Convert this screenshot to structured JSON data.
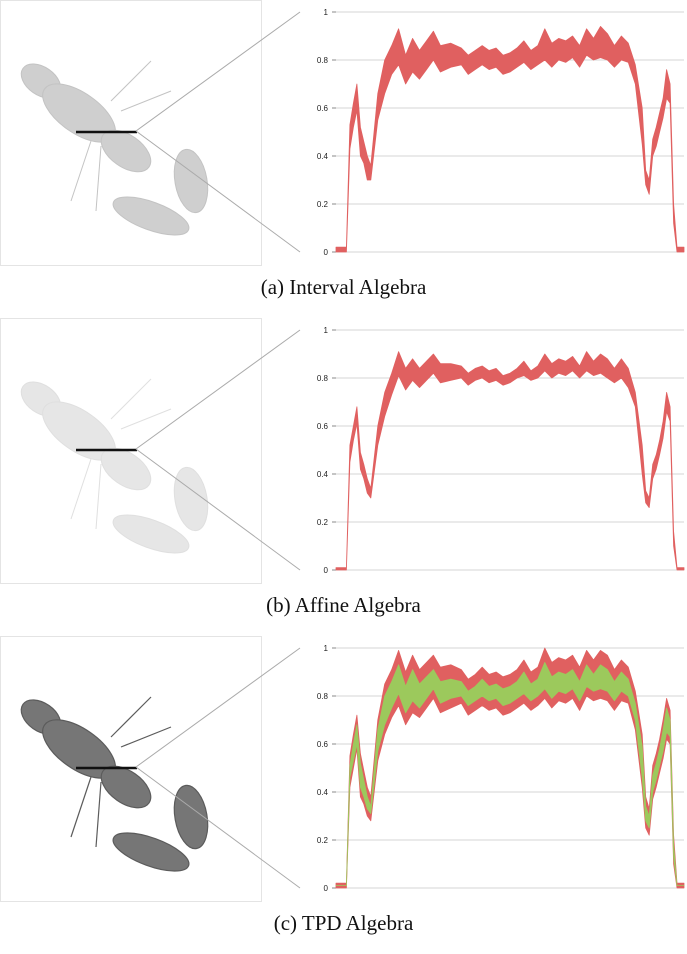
{
  "captions": [
    "(a) Interval Algebra",
    "(b) Affine Algebra",
    "(c) TPD Algebra"
  ],
  "colors": {
    "outer_band": "#e06060",
    "inner_band": "#9cc95c",
    "grid": "#d6d6d6",
    "leader": "#aaaaaa"
  },
  "chart_data": [
    {
      "type": "area",
      "ylim": [
        0,
        1
      ],
      "y_ticks": [
        "0",
        "0.2",
        "0.4",
        "0.6",
        "0.8",
        "1"
      ],
      "x": [
        0,
        1,
        2,
        3,
        4,
        5,
        6,
        7,
        8,
        9,
        10,
        12,
        14,
        16,
        18,
        20,
        22,
        24,
        26,
        28,
        30,
        33,
        36,
        38,
        40,
        42,
        44,
        46,
        48,
        50,
        52,
        54,
        56,
        58,
        60,
        62,
        64,
        66,
        68,
        70,
        72,
        74,
        76,
        78,
        80,
        82,
        84,
        86,
        88,
        89,
        90,
        91,
        92,
        93,
        94,
        95,
        96,
        97,
        98,
        99,
        100
      ],
      "series": [
        {
          "lower": [
            0.0,
            0.0,
            0.0,
            0.0,
            0.43,
            0.52,
            0.59,
            0.4,
            0.37,
            0.3,
            0.3,
            0.55,
            0.66,
            0.74,
            0.78,
            0.7,
            0.75,
            0.72,
            0.76,
            0.8,
            0.75,
            0.77,
            0.78,
            0.74,
            0.76,
            0.78,
            0.76,
            0.77,
            0.74,
            0.75,
            0.77,
            0.79,
            0.76,
            0.78,
            0.8,
            0.77,
            0.8,
            0.79,
            0.81,
            0.77,
            0.82,
            0.8,
            0.81,
            0.8,
            0.77,
            0.8,
            0.79,
            0.7,
            0.45,
            0.28,
            0.24,
            0.4,
            0.44,
            0.5,
            0.56,
            0.64,
            0.62,
            0.12,
            0.0,
            0.0,
            0.0
          ],
          "upper": [
            0.02,
            0.02,
            0.02,
            0.02,
            0.53,
            0.62,
            0.7,
            0.52,
            0.46,
            0.4,
            0.36,
            0.66,
            0.8,
            0.86,
            0.93,
            0.82,
            0.89,
            0.84,
            0.88,
            0.92,
            0.86,
            0.87,
            0.85,
            0.82,
            0.84,
            0.86,
            0.84,
            0.85,
            0.82,
            0.83,
            0.85,
            0.88,
            0.84,
            0.86,
            0.93,
            0.87,
            0.89,
            0.88,
            0.9,
            0.86,
            0.93,
            0.89,
            0.94,
            0.91,
            0.86,
            0.9,
            0.87,
            0.78,
            0.6,
            0.34,
            0.3,
            0.47,
            0.52,
            0.58,
            0.64,
            0.76,
            0.7,
            0.2,
            0.02,
            0.02,
            0.02
          ]
        }
      ]
    },
    {
      "type": "area",
      "ylim": [
        0,
        1
      ],
      "y_ticks": [
        "0",
        "0.2",
        "0.4",
        "0.6",
        "0.8",
        "1"
      ],
      "x": [
        0,
        1,
        2,
        3,
        4,
        5,
        6,
        7,
        8,
        9,
        10,
        12,
        14,
        16,
        18,
        20,
        22,
        24,
        26,
        28,
        30,
        33,
        36,
        38,
        40,
        42,
        44,
        46,
        48,
        50,
        52,
        54,
        56,
        58,
        60,
        62,
        64,
        66,
        68,
        70,
        72,
        74,
        76,
        78,
        80,
        82,
        84,
        86,
        88,
        89,
        90,
        91,
        92,
        93,
        94,
        95,
        96,
        97,
        98,
        99,
        100
      ],
      "series": [
        {
          "lower": [
            0.0,
            0.0,
            0.0,
            0.0,
            0.45,
            0.54,
            0.61,
            0.42,
            0.38,
            0.32,
            0.3,
            0.52,
            0.64,
            0.73,
            0.81,
            0.75,
            0.79,
            0.76,
            0.79,
            0.82,
            0.78,
            0.79,
            0.8,
            0.77,
            0.79,
            0.8,
            0.78,
            0.79,
            0.77,
            0.78,
            0.8,
            0.81,
            0.79,
            0.8,
            0.83,
            0.8,
            0.82,
            0.81,
            0.83,
            0.8,
            0.83,
            0.81,
            0.82,
            0.8,
            0.78,
            0.8,
            0.76,
            0.68,
            0.4,
            0.28,
            0.26,
            0.38,
            0.42,
            0.48,
            0.55,
            0.66,
            0.62,
            0.1,
            0.0,
            0.0,
            0.0
          ],
          "upper": [
            0.01,
            0.01,
            0.01,
            0.01,
            0.52,
            0.6,
            0.68,
            0.49,
            0.44,
            0.38,
            0.34,
            0.6,
            0.74,
            0.82,
            0.91,
            0.84,
            0.88,
            0.84,
            0.87,
            0.9,
            0.86,
            0.86,
            0.85,
            0.82,
            0.84,
            0.85,
            0.83,
            0.84,
            0.81,
            0.82,
            0.84,
            0.87,
            0.83,
            0.85,
            0.9,
            0.86,
            0.88,
            0.87,
            0.89,
            0.85,
            0.91,
            0.87,
            0.9,
            0.88,
            0.84,
            0.88,
            0.84,
            0.74,
            0.52,
            0.33,
            0.3,
            0.44,
            0.48,
            0.54,
            0.62,
            0.74,
            0.68,
            0.16,
            0.01,
            0.01,
            0.01
          ]
        }
      ]
    },
    {
      "type": "area",
      "ylim": [
        0,
        1
      ],
      "y_ticks": [
        "0",
        "0.2",
        "0.4",
        "0.6",
        "0.8",
        "1"
      ],
      "x": [
        0,
        1,
        2,
        3,
        4,
        5,
        6,
        7,
        8,
        9,
        10,
        12,
        14,
        16,
        18,
        20,
        22,
        24,
        26,
        28,
        30,
        33,
        36,
        38,
        40,
        42,
        44,
        46,
        48,
        50,
        52,
        54,
        56,
        58,
        60,
        62,
        64,
        66,
        68,
        70,
        72,
        74,
        76,
        78,
        80,
        82,
        84,
        86,
        88,
        89,
        90,
        91,
        92,
        93,
        94,
        95,
        96,
        97,
        98,
        99,
        100
      ],
      "series": [
        {
          "lower": [
            0.0,
            0.0,
            0.0,
            0.0,
            0.42,
            0.5,
            0.58,
            0.38,
            0.35,
            0.3,
            0.28,
            0.53,
            0.64,
            0.71,
            0.76,
            0.68,
            0.73,
            0.71,
            0.75,
            0.79,
            0.73,
            0.75,
            0.77,
            0.72,
            0.74,
            0.76,
            0.74,
            0.75,
            0.72,
            0.73,
            0.75,
            0.77,
            0.74,
            0.76,
            0.79,
            0.75,
            0.78,
            0.77,
            0.79,
            0.74,
            0.8,
            0.78,
            0.79,
            0.78,
            0.74,
            0.78,
            0.77,
            0.66,
            0.42,
            0.25,
            0.22,
            0.37,
            0.42,
            0.48,
            0.54,
            0.62,
            0.6,
            0.1,
            0.0,
            0.0,
            0.0
          ],
          "upper": [
            0.02,
            0.02,
            0.02,
            0.02,
            0.55,
            0.64,
            0.72,
            0.56,
            0.49,
            0.42,
            0.38,
            0.7,
            0.85,
            0.91,
            0.99,
            0.9,
            0.97,
            0.91,
            0.94,
            0.97,
            0.92,
            0.93,
            0.91,
            0.87,
            0.89,
            0.92,
            0.89,
            0.9,
            0.88,
            0.89,
            0.91,
            0.95,
            0.9,
            0.92,
            1.0,
            0.94,
            0.96,
            0.95,
            0.97,
            0.92,
            0.99,
            0.95,
            0.99,
            0.97,
            0.91,
            0.95,
            0.92,
            0.82,
            0.64,
            0.38,
            0.33,
            0.51,
            0.56,
            0.62,
            0.7,
            0.79,
            0.74,
            0.22,
            0.02,
            0.02,
            0.02
          ]
        },
        {
          "lower": [
            0.01,
            0.01,
            0.01,
            0.01,
            0.46,
            0.53,
            0.6,
            0.42,
            0.38,
            0.33,
            0.31,
            0.57,
            0.68,
            0.75,
            0.81,
            0.73,
            0.78,
            0.75,
            0.79,
            0.83,
            0.77,
            0.79,
            0.8,
            0.76,
            0.78,
            0.8,
            0.78,
            0.79,
            0.76,
            0.77,
            0.79,
            0.81,
            0.78,
            0.8,
            0.83,
            0.79,
            0.82,
            0.81,
            0.83,
            0.78,
            0.84,
            0.82,
            0.83,
            0.82,
            0.78,
            0.82,
            0.8,
            0.7,
            0.46,
            0.28,
            0.25,
            0.4,
            0.45,
            0.51,
            0.57,
            0.65,
            0.63,
            0.13,
            0.01,
            0.01,
            0.01
          ],
          "upper": [
            0.01,
            0.01,
            0.01,
            0.01,
            0.51,
            0.6,
            0.68,
            0.52,
            0.45,
            0.38,
            0.34,
            0.66,
            0.8,
            0.86,
            0.93,
            0.84,
            0.91,
            0.85,
            0.88,
            0.91,
            0.86,
            0.87,
            0.86,
            0.82,
            0.84,
            0.87,
            0.84,
            0.85,
            0.83,
            0.84,
            0.86,
            0.9,
            0.85,
            0.87,
            0.94,
            0.88,
            0.9,
            0.89,
            0.91,
            0.86,
            0.93,
            0.89,
            0.93,
            0.91,
            0.86,
            0.9,
            0.87,
            0.77,
            0.59,
            0.34,
            0.3,
            0.47,
            0.52,
            0.58,
            0.66,
            0.75,
            0.7,
            0.18,
            0.01,
            0.01,
            0.01
          ]
        }
      ]
    }
  ]
}
